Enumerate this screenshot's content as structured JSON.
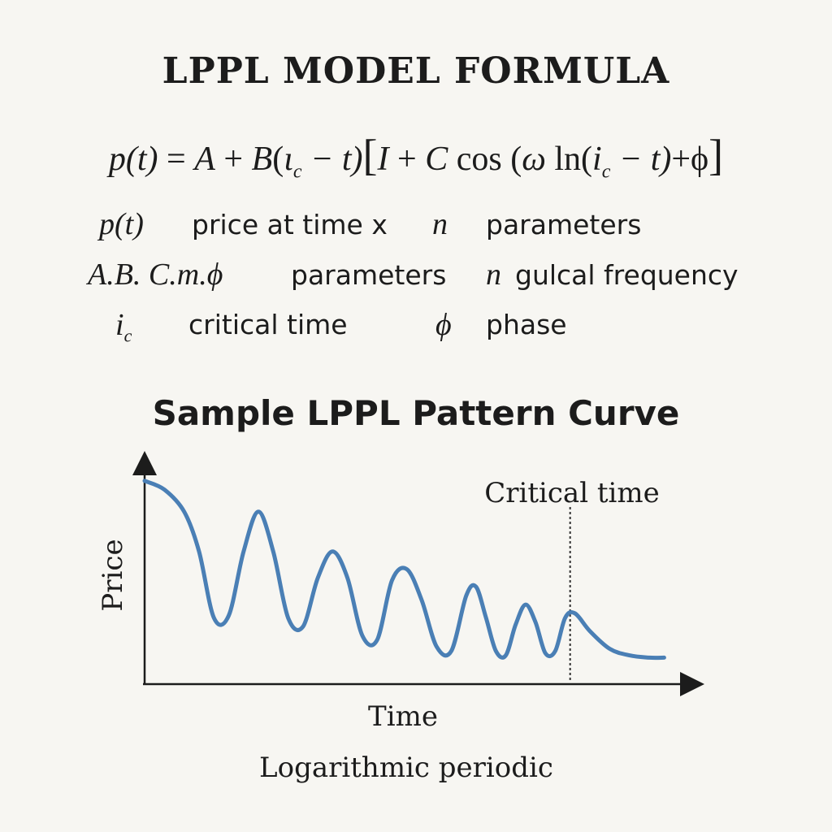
{
  "title": "LPPL MODEL FORMULA",
  "formula": {
    "lhs": "p(t)",
    "eq": " = ",
    "A": "A",
    "plus1": " + ",
    "B": "B",
    "paren1": "(",
    "tc1": "ι",
    "tc1_sub": "c",
    "minus_t1": " − t)",
    "bracket_open": "[",
    "one": "I",
    "plus2": " + ",
    "C": "C",
    "cos": " cos ",
    "paren2": "(",
    "omega": "ω",
    "ln": " ln(",
    "tc2": "i",
    "tc2_sub": "c",
    "minus_t2": " − t)",
    "plus_phi": "+ϕ",
    "bracket_close": "]"
  },
  "legend": {
    "row1": {
      "sym_left": "p(t)",
      "desc_left": "price at time x",
      "sym_right": "n",
      "desc_right": "parameters"
    },
    "row2": {
      "sym_left": "A.B. C.m.ϕ",
      "desc_left": "parameters",
      "sym_right": "n",
      "desc_right": "gulcal frequency"
    },
    "row3": {
      "sym_left": "i",
      "sym_left_sub": "c",
      "desc_left": "critical time",
      "sym_right": "ϕ",
      "desc_right": "phase"
    }
  },
  "chart_data": {
    "type": "line",
    "title": "Sample LPPL Pattern Curve",
    "xlabel": "Time",
    "ylabel": "Price",
    "caption": "Logarithmic periodic",
    "annotation": "Critical time",
    "critical_time_x": 0.86,
    "xlim": [
      0,
      1.12
    ],
    "ylim": [
      0,
      1
    ],
    "grid": false,
    "series": [
      {
        "color": "#4a7fb5",
        "x": [
          0,
          0.04,
          0.08,
          0.11,
          0.14,
          0.17,
          0.2,
          0.23,
          0.26,
          0.29,
          0.32,
          0.35,
          0.38,
          0.41,
          0.44,
          0.47,
          0.5,
          0.53,
          0.56,
          0.59,
          0.62,
          0.65,
          0.67,
          0.69,
          0.71,
          0.73,
          0.75,
          0.77,
          0.79,
          0.81,
          0.83,
          0.85,
          0.87,
          0.9,
          0.94,
          0.98,
          1.02,
          1.05
        ],
        "y": [
          0.92,
          0.88,
          0.78,
          0.6,
          0.3,
          0.31,
          0.6,
          0.78,
          0.6,
          0.3,
          0.26,
          0.48,
          0.6,
          0.48,
          0.22,
          0.2,
          0.47,
          0.52,
          0.38,
          0.17,
          0.15,
          0.4,
          0.44,
          0.3,
          0.15,
          0.13,
          0.27,
          0.36,
          0.28,
          0.14,
          0.15,
          0.3,
          0.32,
          0.24,
          0.16,
          0.13,
          0.12,
          0.12
        ]
      }
    ]
  }
}
